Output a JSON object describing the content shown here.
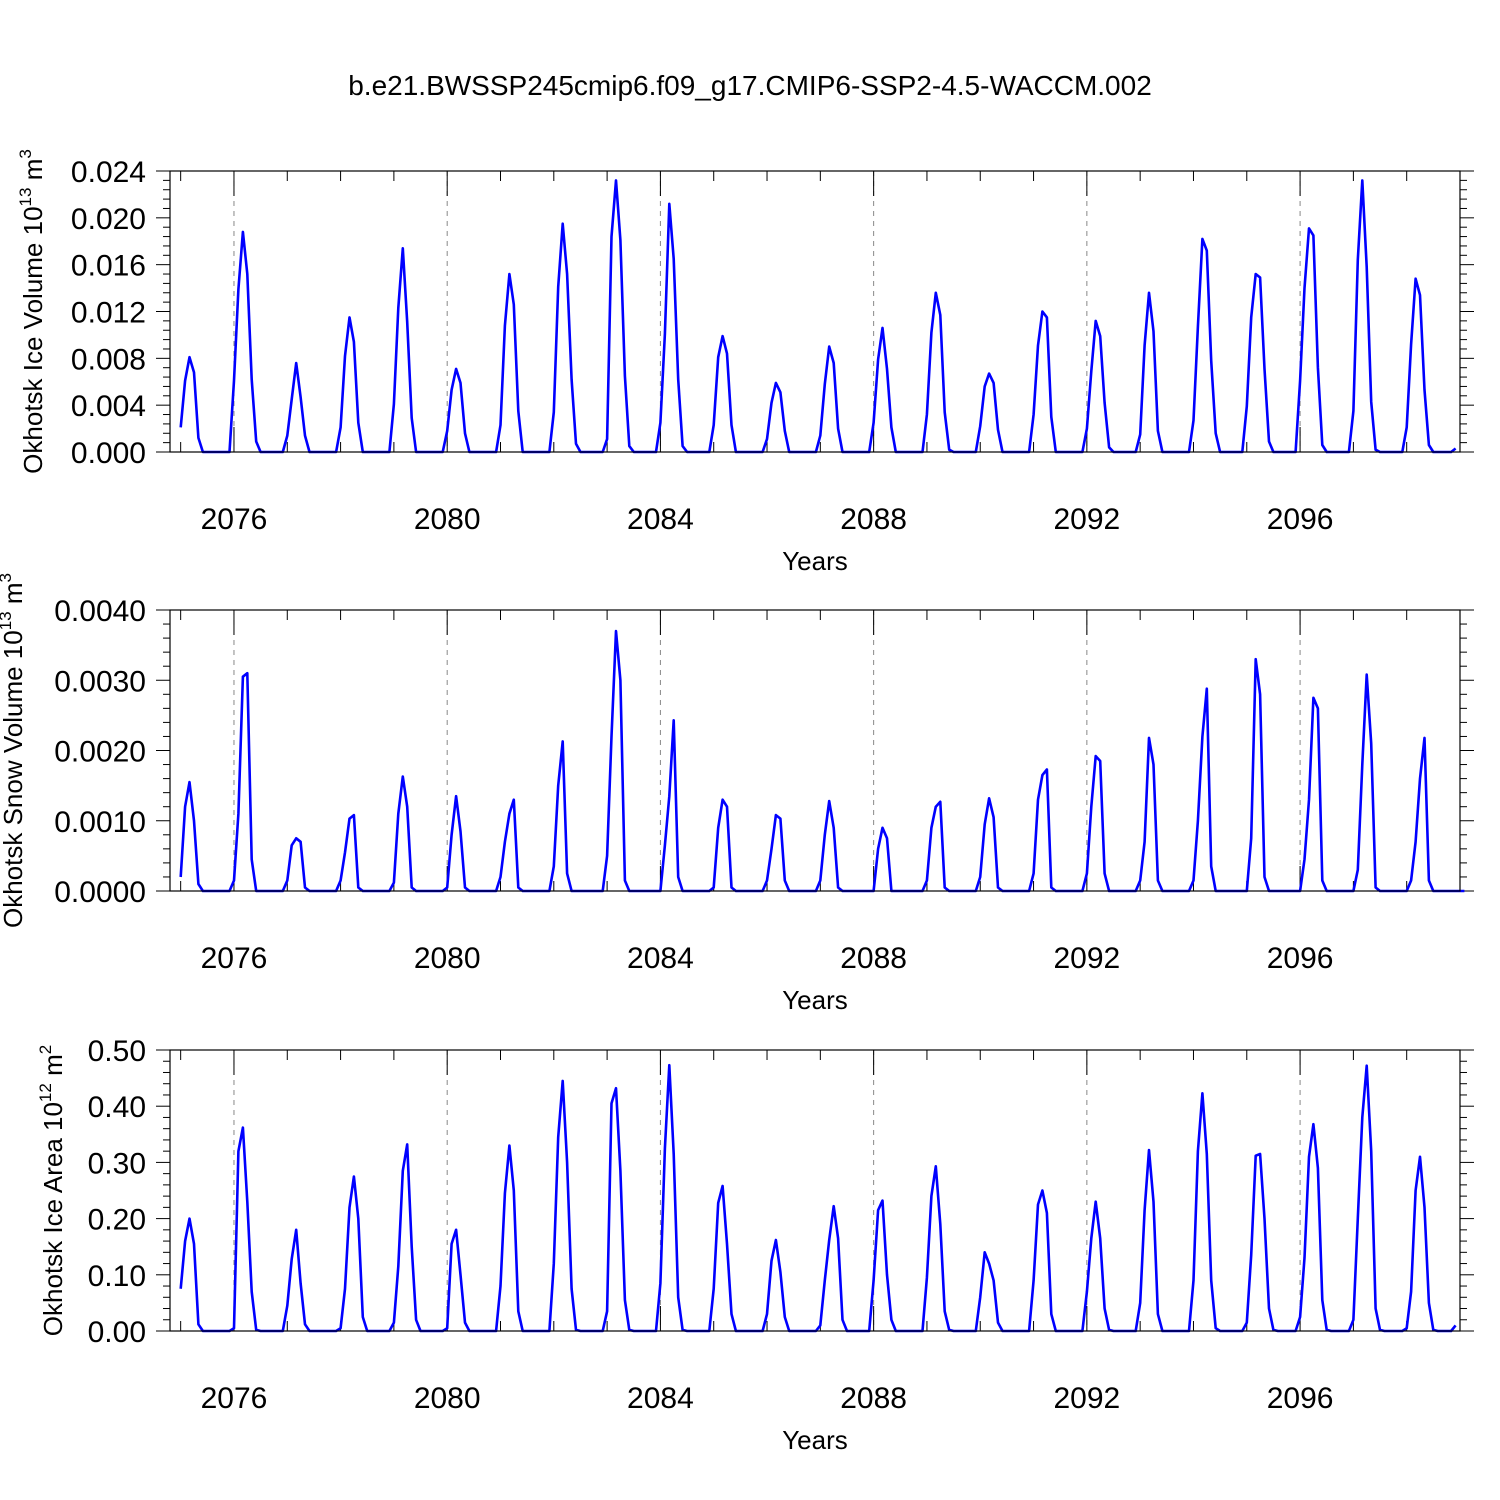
{
  "title": "b.e21.BWSSP245cmip6.f09_g17.CMIP6-SSP2-4.5-WACCM.002",
  "colors": {
    "line": "#0000ff",
    "grid": "#888888",
    "axes": "#000000"
  },
  "chart_data": [
    {
      "type": "line",
      "title": "",
      "xlabel": "Years",
      "ylabel": "Okhotsk Ice Volume 10^13 m^3",
      "ylabel_parts": {
        "main": "Okhotsk Ice Volume 10",
        "exp1": "13",
        "unit": " m",
        "exp2": "3"
      },
      "xlim": [
        2074.8,
        2099.0
      ],
      "ylim": [
        0.0,
        0.024
      ],
      "xticks": [
        2076,
        2080,
        2084,
        2088,
        2092,
        2096
      ],
      "xtick_labels": [
        "2076",
        "2080",
        "2084",
        "2088",
        "2092",
        "2096"
      ],
      "yticks": [
        0.0,
        0.004,
        0.008,
        0.012,
        0.016,
        0.02,
        0.024
      ],
      "ytick_labels": [
        "0.000",
        "0.004",
        "0.008",
        "0.012",
        "0.016",
        "0.020",
        "0.024"
      ],
      "grid": "vertical dashed at labeled years",
      "series": [
        {
          "name": "Okhotsk Ice Volume",
          "start_year": 2075,
          "step_months": 1,
          "values": [
            0.0021,
            0.0061,
            0.0081,
            0.0068,
            0.0012,
            0.0,
            0.0,
            0.0,
            0.0,
            0.0,
            0.0,
            0.0,
            0.0061,
            0.0139,
            0.0188,
            0.0152,
            0.0062,
            0.0009,
            0.0,
            0.0,
            0.0,
            0.0,
            0.0,
            0.0,
            0.0014,
            0.0045,
            0.0076,
            0.0047,
            0.0014,
            0.0,
            0.0,
            0.0,
            0.0,
            0.0,
            0.0,
            0.0,
            0.0021,
            0.0082,
            0.0115,
            0.0094,
            0.0025,
            0.0,
            0.0,
            0.0,
            0.0,
            0.0,
            0.0,
            0.0,
            0.0041,
            0.0123,
            0.0174,
            0.0111,
            0.0029,
            0.0,
            0.0,
            0.0,
            0.0,
            0.0,
            0.0,
            0.0,
            0.0018,
            0.0053,
            0.0071,
            0.0059,
            0.0016,
            0.0,
            0.0,
            0.0,
            0.0,
            0.0,
            0.0,
            0.0,
            0.0023,
            0.0108,
            0.0152,
            0.0126,
            0.0035,
            0.0,
            0.0,
            0.0,
            0.0,
            0.0,
            0.0,
            0.0,
            0.0034,
            0.0141,
            0.0195,
            0.0152,
            0.0062,
            0.0007,
            0.0,
            0.0,
            0.0,
            0.0,
            0.0,
            0.0,
            0.0011,
            0.0184,
            0.0232,
            0.0181,
            0.0065,
            0.0005,
            0.0,
            0.0,
            0.0,
            0.0,
            0.0,
            0.0,
            0.0025,
            0.0101,
            0.0212,
            0.0165,
            0.0062,
            0.0005,
            0.0,
            0.0,
            0.0,
            0.0,
            0.0,
            0.0,
            0.0023,
            0.0081,
            0.0099,
            0.0084,
            0.0023,
            0.0,
            0.0,
            0.0,
            0.0,
            0.0,
            0.0,
            0.0,
            0.0011,
            0.0042,
            0.0059,
            0.0051,
            0.0018,
            0.0,
            0.0,
            0.0,
            0.0,
            0.0,
            0.0,
            0.0,
            0.0014,
            0.0058,
            0.009,
            0.0076,
            0.002,
            0.0,
            0.0,
            0.0,
            0.0,
            0.0,
            0.0,
            0.0,
            0.0025,
            0.0079,
            0.0106,
            0.0071,
            0.0021,
            0.0,
            0.0,
            0.0,
            0.0,
            0.0,
            0.0,
            0.0,
            0.0032,
            0.0102,
            0.0136,
            0.0117,
            0.0034,
            0.0002,
            0.0,
            0.0,
            0.0,
            0.0,
            0.0,
            0.0,
            0.0022,
            0.0056,
            0.0067,
            0.0059,
            0.0019,
            0.0,
            0.0,
            0.0,
            0.0,
            0.0,
            0.0,
            0.0,
            0.0032,
            0.0091,
            0.012,
            0.0115,
            0.003,
            0.0,
            0.0,
            0.0,
            0.0,
            0.0,
            0.0,
            0.0,
            0.002,
            0.0069,
            0.0112,
            0.0099,
            0.0042,
            0.0004,
            0.0,
            0.0,
            0.0,
            0.0,
            0.0,
            0.0,
            0.0015,
            0.0091,
            0.0136,
            0.0103,
            0.0018,
            0.0,
            0.0,
            0.0,
            0.0,
            0.0,
            0.0,
            0.0,
            0.0027,
            0.0107,
            0.0182,
            0.0172,
            0.0078,
            0.0016,
            0.0,
            0.0,
            0.0,
            0.0,
            0.0,
            0.0,
            0.0039,
            0.0115,
            0.0152,
            0.0149,
            0.0071,
            0.0009,
            0.0,
            0.0,
            0.0,
            0.0,
            0.0,
            0.0,
            0.0061,
            0.014,
            0.0191,
            0.0185,
            0.0072,
            0.0006,
            0.0,
            0.0,
            0.0,
            0.0,
            0.0,
            0.0,
            0.0035,
            0.0164,
            0.0232,
            0.0158,
            0.0043,
            0.0002,
            0.0,
            0.0,
            0.0,
            0.0,
            0.0,
            0.0,
            0.0021,
            0.0092,
            0.0148,
            0.0134,
            0.0053,
            0.0006,
            0.0,
            0.0,
            0.0,
            0.0,
            0.0,
            0.0003
          ]
        }
      ]
    },
    {
      "type": "line",
      "title": "",
      "xlabel": "Years",
      "ylabel": "Okhotsk Snow Volume 10^13 m^3",
      "ylabel_parts": {
        "main": "Okhotsk Snow Volume 10",
        "exp1": "13",
        "unit": " m",
        "exp2": "3"
      },
      "xlim": [
        2074.8,
        2099.0
      ],
      "ylim": [
        0.0,
        0.004
      ],
      "xticks": [
        2076,
        2080,
        2084,
        2088,
        2092,
        2096
      ],
      "xtick_labels": [
        "2076",
        "2080",
        "2084",
        "2088",
        "2092",
        "2096"
      ],
      "yticks": [
        0.0,
        0.001,
        0.002,
        0.003,
        0.004
      ],
      "ytick_labels": [
        "0.0000",
        "0.0010",
        "0.0020",
        "0.0030",
        "0.0040"
      ],
      "grid": "vertical dashed at labeled years",
      "series": [
        {
          "name": "Okhotsk Snow Volume",
          "start_year": 2075,
          "step_months": 1,
          "values": [
            0.0002,
            0.0012,
            0.00155,
            0.001,
            0.0001,
            0.0,
            0.0,
            0.0,
            0.0,
            0.0,
            0.0,
            0.0,
            0.00015,
            0.0011,
            0.00305,
            0.0031,
            0.00045,
            0.0,
            0.0,
            0.0,
            0.0,
            0.0,
            0.0,
            0.0,
            0.00015,
            0.00065,
            0.00075,
            0.0007,
            5e-05,
            0.0,
            0.0,
            0.0,
            0.0,
            0.0,
            0.0,
            0.0,
            0.00015,
            0.00055,
            0.00103,
            0.00108,
            5e-05,
            0.0,
            0.0,
            0.0,
            0.0,
            0.0,
            0.0,
            0.0,
            0.00012,
            0.0011,
            0.00163,
            0.0012,
            5e-05,
            0.0,
            0.0,
            0.0,
            0.0,
            0.0,
            0.0,
            0.0,
            5e-05,
            0.0008,
            0.00135,
            0.00085,
            5e-05,
            0.0,
            0.0,
            0.0,
            0.0,
            0.0,
            0.0,
            0.0,
            0.0002,
            0.0007,
            0.0011,
            0.0013,
            5e-05,
            0.0,
            0.0,
            0.0,
            0.0,
            0.0,
            0.0,
            0.0,
            0.00035,
            0.0015,
            0.00213,
            0.00025,
            0.0,
            0.0,
            0.0,
            0.0,
            0.0,
            0.0,
            0.0,
            0.0,
            0.0005,
            0.0022,
            0.0037,
            0.003,
            0.00015,
            0.0,
            0.0,
            0.0,
            0.0,
            0.0,
            0.0,
            0.0,
            0.0,
            0.00065,
            0.00135,
            0.00243,
            0.0002,
            0.0,
            0.0,
            0.0,
            0.0,
            0.0,
            0.0,
            0.0,
            5e-05,
            0.0009,
            0.0013,
            0.0012,
            5e-05,
            0.0,
            0.0,
            0.0,
            0.0,
            0.0,
            0.0,
            0.0,
            0.00015,
            0.0006,
            0.00108,
            0.00103,
            0.00015,
            0.0,
            0.0,
            0.0,
            0.0,
            0.0,
            0.0,
            0.0,
            0.00015,
            0.0008,
            0.00128,
            0.0009,
            5e-05,
            0.0,
            0.0,
            0.0,
            0.0,
            0.0,
            0.0,
            0.0,
            0.0,
            0.0006,
            0.0009,
            0.00075,
            0.0,
            0.0,
            0.0,
            0.0,
            0.0,
            0.0,
            0.0,
            0.0,
            0.00015,
            0.0009,
            0.0012,
            0.00127,
            5e-05,
            0.0,
            0.0,
            0.0,
            0.0,
            0.0,
            0.0,
            0.0,
            0.0002,
            0.00095,
            0.00132,
            0.00105,
            5e-05,
            0.0,
            0.0,
            0.0,
            0.0,
            0.0,
            0.0,
            0.0,
            0.00025,
            0.0013,
            0.00165,
            0.00173,
            5e-05,
            0.0,
            0.0,
            0.0,
            0.0,
            0.0,
            0.0,
            0.0,
            0.00025,
            0.0012,
            0.00192,
            0.00185,
            0.00025,
            0.0,
            0.0,
            0.0,
            0.0,
            0.0,
            0.0,
            0.0,
            0.00015,
            0.0007,
            0.00218,
            0.0018,
            0.00015,
            0.0,
            0.0,
            0.0,
            0.0,
            0.0,
            0.0,
            0.0,
            0.00015,
            0.001,
            0.0022,
            0.00288,
            0.00035,
            0.0,
            0.0,
            0.0,
            0.0,
            0.0,
            0.0,
            0.0,
            0.0,
            0.00075,
            0.0033,
            0.0028,
            0.0002,
            0.0,
            0.0,
            0.0,
            0.0,
            0.0,
            0.0,
            0.0,
            0.0,
            0.00045,
            0.0013,
            0.00275,
            0.0026,
            0.00015,
            0.0,
            0.0,
            0.0,
            0.0,
            0.0,
            0.0,
            0.0,
            0.0003,
            0.0018,
            0.00308,
            0.0021,
            5e-05,
            0.0,
            0.0,
            0.0,
            0.0,
            0.0,
            0.0,
            0.0,
            0.00015,
            0.0007,
            0.0016,
            0.00218,
            0.00015,
            0.0,
            0.0,
            0.0,
            0.0,
            0.0,
            0.0,
            0.0,
            0.0
          ]
        }
      ]
    },
    {
      "type": "line",
      "title": "",
      "xlabel": "Years",
      "ylabel": "Okhotsk Ice Area 10^12 m^2",
      "ylabel_parts": {
        "main": "Okhotsk Ice Area 10",
        "exp1": "12",
        "unit": " m",
        "exp2": "2"
      },
      "xlim": [
        2074.8,
        2099.0
      ],
      "ylim": [
        0.0,
        0.5
      ],
      "xticks": [
        2076,
        2080,
        2084,
        2088,
        2092,
        2096
      ],
      "xtick_labels": [
        "2076",
        "2080",
        "2084",
        "2088",
        "2092",
        "2096"
      ],
      "yticks": [
        0.0,
        0.1,
        0.2,
        0.3,
        0.4,
        0.5
      ],
      "ytick_labels": [
        "0.00",
        "0.10",
        "0.20",
        "0.30",
        "0.40",
        "0.50"
      ],
      "grid": "vertical dashed at labeled years",
      "series": [
        {
          "name": "Okhotsk Ice Area",
          "start_year": 2075,
          "step_months": 1,
          "values": [
            0.075,
            0.16,
            0.2,
            0.155,
            0.012,
            0.0,
            0.0,
            0.0,
            0.0,
            0.0,
            0.0,
            0.0,
            0.005,
            0.32,
            0.362,
            0.23,
            0.07,
            0.002,
            0.0,
            0.0,
            0.0,
            0.0,
            0.0,
            0.0,
            0.045,
            0.128,
            0.18,
            0.085,
            0.012,
            0.0,
            0.0,
            0.0,
            0.0,
            0.0,
            0.0,
            0.0,
            0.005,
            0.075,
            0.22,
            0.275,
            0.2,
            0.025,
            0.0,
            0.0,
            0.0,
            0.0,
            0.0,
            0.0,
            0.015,
            0.115,
            0.285,
            0.332,
            0.15,
            0.02,
            0.0,
            0.0,
            0.0,
            0.0,
            0.0,
            0.0,
            0.005,
            0.155,
            0.18,
            0.1,
            0.015,
            0.0,
            0.0,
            0.0,
            0.0,
            0.0,
            0.0,
            0.0,
            0.08,
            0.245,
            0.33,
            0.25,
            0.035,
            0.0,
            0.0,
            0.0,
            0.0,
            0.0,
            0.0,
            0.0,
            0.12,
            0.345,
            0.445,
            0.3,
            0.075,
            0.002,
            0.0,
            0.0,
            0.0,
            0.0,
            0.0,
            0.0,
            0.035,
            0.405,
            0.432,
            0.285,
            0.055,
            0.002,
            0.0,
            0.0,
            0.0,
            0.0,
            0.0,
            0.0,
            0.085,
            0.325,
            0.473,
            0.315,
            0.06,
            0.002,
            0.0,
            0.0,
            0.0,
            0.0,
            0.0,
            0.0,
            0.075,
            0.228,
            0.258,
            0.155,
            0.03,
            0.0,
            0.0,
            0.0,
            0.0,
            0.0,
            0.0,
            0.0,
            0.03,
            0.125,
            0.162,
            0.105,
            0.025,
            0.0,
            0.0,
            0.0,
            0.0,
            0.0,
            0.0,
            0.0,
            0.01,
            0.09,
            0.162,
            0.222,
            0.165,
            0.02,
            0.0,
            0.0,
            0.0,
            0.0,
            0.0,
            0.0,
            0.09,
            0.215,
            0.232,
            0.1,
            0.02,
            0.0,
            0.0,
            0.0,
            0.0,
            0.0,
            0.0,
            0.0,
            0.095,
            0.24,
            0.293,
            0.19,
            0.035,
            0.002,
            0.0,
            0.0,
            0.0,
            0.0,
            0.0,
            0.0,
            0.06,
            0.14,
            0.12,
            0.09,
            0.015,
            0.0,
            0.0,
            0.0,
            0.0,
            0.0,
            0.0,
            0.0,
            0.09,
            0.225,
            0.25,
            0.21,
            0.03,
            0.0,
            0.0,
            0.0,
            0.0,
            0.0,
            0.0,
            0.0,
            0.07,
            0.165,
            0.23,
            0.165,
            0.04,
            0.002,
            0.0,
            0.0,
            0.0,
            0.0,
            0.0,
            0.0,
            0.05,
            0.215,
            0.322,
            0.23,
            0.03,
            0.0,
            0.0,
            0.0,
            0.0,
            0.0,
            0.0,
            0.0,
            0.09,
            0.32,
            0.423,
            0.315,
            0.09,
            0.005,
            0.0,
            0.0,
            0.0,
            0.0,
            0.0,
            0.0,
            0.015,
            0.135,
            0.312,
            0.315,
            0.2,
            0.04,
            0.002,
            0.0,
            0.0,
            0.0,
            0.0,
            0.0,
            0.025,
            0.13,
            0.31,
            0.368,
            0.29,
            0.055,
            0.002,
            0.0,
            0.0,
            0.0,
            0.0,
            0.0,
            0.02,
            0.2,
            0.38,
            0.472,
            0.32,
            0.04,
            0.002,
            0.0,
            0.0,
            0.0,
            0.0,
            0.0,
            0.005,
            0.07,
            0.25,
            0.31,
            0.22,
            0.05,
            0.002,
            0.0,
            0.0,
            0.0,
            0.0,
            0.01
          ]
        }
      ]
    }
  ]
}
